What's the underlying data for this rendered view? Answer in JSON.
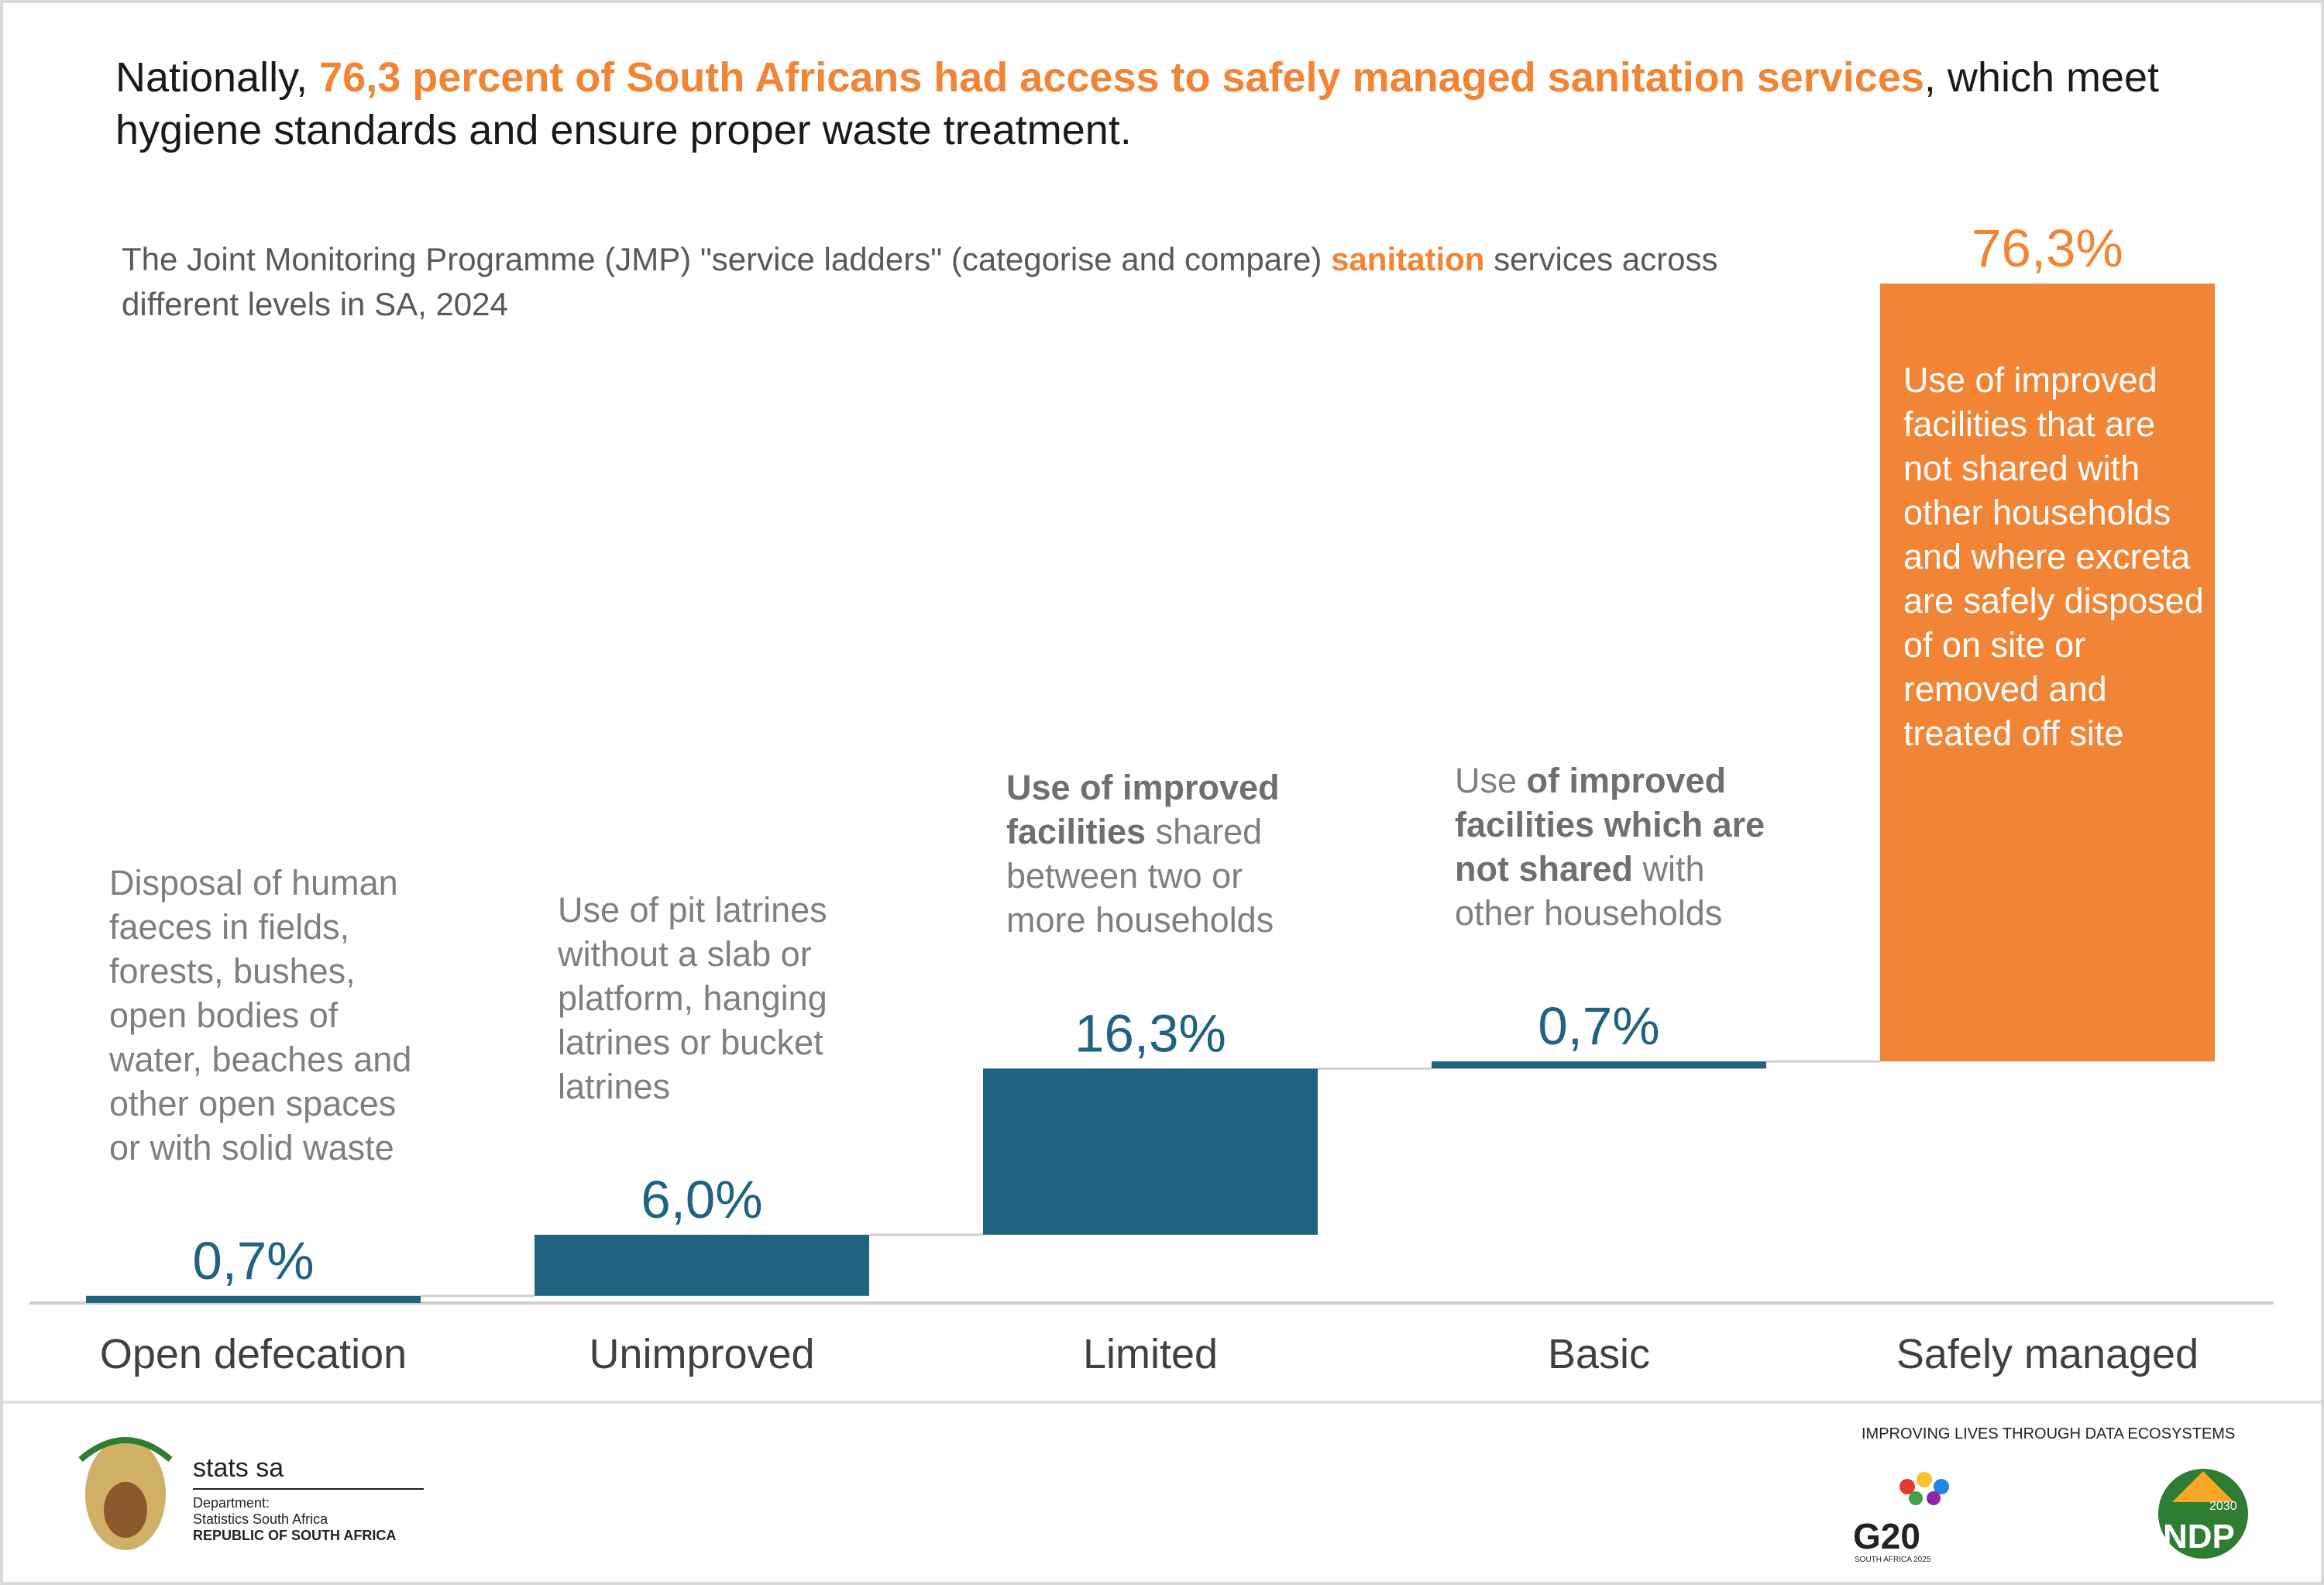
{
  "chart_data": {
    "type": "waterfall",
    "title": [
      {
        "text": "Nationally, "
      },
      {
        "text": "76,3 percent of South Africans had access to safely managed sanitation services",
        "highlight": true
      },
      {
        "text": ", which meet hygiene standards and ensure proper waste treatment."
      }
    ],
    "subtitle": [
      {
        "text": "The Joint Monitoring Programme (JMP) \"service ladders\" (categorise and compare) "
      },
      {
        "text": "sanitation",
        "highlight": true
      },
      {
        "text": " services across different levels in SA,  2024"
      }
    ],
    "categories": [
      "Open defecation",
      "Unimproved",
      "Limited",
      "Basic",
      "Safely managed"
    ],
    "values": [
      0.7,
      6.0,
      16.3,
      0.7,
      76.3
    ],
    "value_labels": [
      "0,7%",
      "6,0%",
      "16,3%",
      "0,7%",
      "76,3%"
    ],
    "colors": [
      "#1f6380",
      "#1f6380",
      "#1f6380",
      "#1f6380",
      "#f28535"
    ],
    "highlight_color": "#f28535",
    "descriptions": [
      [
        {
          "text": "Disposal of human faeces in fields, forests, bushes, open bodies of water, beaches and other open spaces or with solid waste"
        }
      ],
      [
        {
          "text": "Use of pit latrines without a slab or platform, hanging latrines or bucket latrines"
        }
      ],
      [
        {
          "text": "Use of improved facilities",
          "bold": true
        },
        {
          "text": " shared between two or more households"
        }
      ],
      [
        {
          "text": "Use "
        },
        {
          "text": "of improved facilities which are not shared",
          "bold": true
        },
        {
          "text": " with other households"
        }
      ],
      [
        {
          "text": "Use of improved facilities that are not shared with other households and where excreta are safely disposed of on site or removed and treated off site"
        }
      ]
    ],
    "description_placement": [
      "above",
      "above",
      "above",
      "above",
      "inside"
    ],
    "ylim": [
      0,
      100
    ]
  },
  "footer": {
    "org": "stats sa",
    "department": "Department:",
    "agency": "Statistics South Africa",
    "country": "REPUBLIC OF SOUTH AFRICA",
    "slogan": "IMPROVING LIVES THROUGH DATA ECOSYSTEMS",
    "g20": "G20",
    "g20_sub": "SOUTH AFRICA 2025",
    "ndp": "NDP",
    "ndp_year": "2030"
  }
}
